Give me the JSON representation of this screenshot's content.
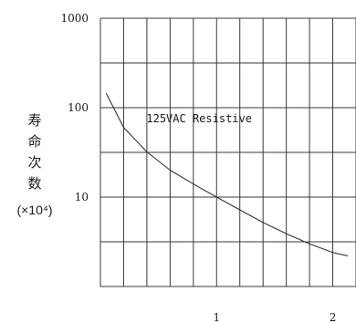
{
  "chart_data": {
    "type": "line",
    "title": "",
    "xlabel": "",
    "ylabel_chars": [
      "寿",
      "命",
      "次",
      "数"
    ],
    "ylabel_unit": "(×10⁴)",
    "yscale": "log",
    "xlim": [
      0,
      2.2
    ],
    "ylim": [
      1,
      1000
    ],
    "grid": true,
    "x_ticks": [
      {
        "value": 1,
        "label": "1"
      },
      {
        "value": 2,
        "label": "2"
      }
    ],
    "y_ticks": [
      {
        "value": 10,
        "label": "10"
      },
      {
        "value": 100,
        "label": "100"
      },
      {
        "value": 1000,
        "label": "1000"
      }
    ],
    "series": [
      {
        "x": [
          0.05,
          0.2,
          0.4,
          0.6,
          0.8,
          1.0,
          1.2,
          1.4,
          1.6,
          1.8,
          2.0,
          2.13
        ],
        "y": [
          145,
          60,
          32,
          20,
          14,
          10,
          7.2,
          5.2,
          3.9,
          3.0,
          2.4,
          2.2
        ],
        "color": "#333333"
      }
    ],
    "annotations": [
      {
        "text": "125VAC Resistive",
        "x": 0.85,
        "y": 75
      }
    ]
  }
}
